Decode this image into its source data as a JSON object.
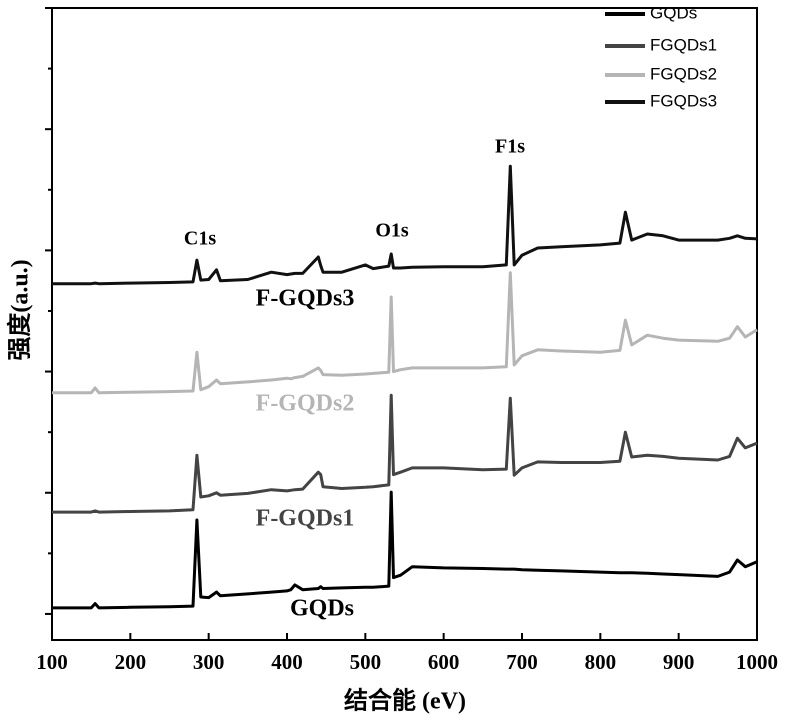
{
  "chart_data": {
    "type": "line",
    "x_label": "结合能 (eV)",
    "y_label": "强度(a.u.)",
    "x": [
      100,
      150,
      155,
      160,
      200,
      250,
      280,
      285,
      290,
      300,
      310,
      315,
      350,
      380,
      400,
      405,
      410,
      420,
      440,
      443,
      446,
      470,
      500,
      510,
      530,
      533,
      536,
      545,
      560,
      600,
      650,
      680,
      685,
      690,
      700,
      720,
      750,
      800,
      825,
      832,
      840,
      860,
      880,
      900,
      950,
      965,
      975,
      985,
      1000
    ],
    "series": [
      {
        "name": "GQDs",
        "color": "#000000",
        "values": [
          0.1,
          0.1,
          0.17,
          0.1,
          0.11,
          0.12,
          0.13,
          1.55,
          0.28,
          0.27,
          0.36,
          0.3,
          0.33,
          0.36,
          0.38,
          0.4,
          0.48,
          0.4,
          0.42,
          0.45,
          0.42,
          0.43,
          0.44,
          0.44,
          0.46,
          2.01,
          0.6,
          0.64,
          0.78,
          0.76,
          0.75,
          0.74,
          0.74,
          0.74,
          0.73,
          0.72,
          0.71,
          0.69,
          0.68,
          0.68,
          0.68,
          0.67,
          0.66,
          0.65,
          0.62,
          0.69,
          0.89,
          0.78,
          0.86
        ]
      },
      {
        "name": "FGQDs1",
        "color": "#444444",
        "values": [
          1.68,
          1.68,
          1.7,
          1.68,
          1.69,
          1.7,
          1.72,
          2.62,
          1.93,
          1.95,
          2.0,
          1.96,
          1.99,
          2.05,
          2.03,
          2.04,
          2.05,
          2.06,
          2.34,
          2.3,
          2.1,
          2.07,
          2.09,
          2.1,
          2.13,
          3.61,
          2.3,
          2.34,
          2.41,
          2.41,
          2.38,
          2.39,
          3.56,
          2.29,
          2.41,
          2.51,
          2.5,
          2.5,
          2.52,
          3.0,
          2.59,
          2.62,
          2.6,
          2.57,
          2.54,
          2.6,
          2.9,
          2.74,
          2.82
        ]
      },
      {
        "name": "FGQDs2",
        "color": "#b5b5b5",
        "values": [
          3.65,
          3.65,
          3.73,
          3.65,
          3.66,
          3.67,
          3.68,
          4.32,
          3.7,
          3.75,
          3.86,
          3.8,
          3.83,
          3.86,
          3.89,
          3.88,
          3.9,
          3.92,
          4.06,
          4.02,
          3.95,
          3.94,
          3.96,
          3.97,
          3.99,
          5.23,
          4.0,
          4.03,
          4.06,
          4.06,
          4.06,
          4.08,
          5.63,
          4.11,
          4.26,
          4.36,
          4.34,
          4.32,
          4.35,
          4.85,
          4.44,
          4.6,
          4.55,
          4.52,
          4.5,
          4.55,
          4.74,
          4.57,
          4.69
        ]
      },
      {
        "name": "FGQDs3",
        "color": "#111111",
        "values": [
          5.45,
          5.45,
          5.46,
          5.45,
          5.46,
          5.47,
          5.48,
          5.84,
          5.51,
          5.52,
          5.68,
          5.5,
          5.52,
          5.64,
          5.6,
          5.61,
          5.62,
          5.62,
          5.89,
          5.75,
          5.64,
          5.64,
          5.76,
          5.7,
          5.74,
          5.94,
          5.71,
          5.71,
          5.72,
          5.73,
          5.73,
          5.76,
          7.39,
          5.76,
          5.92,
          6.04,
          6.06,
          6.09,
          6.12,
          6.63,
          6.17,
          6.27,
          6.24,
          6.17,
          6.17,
          6.2,
          6.24,
          6.2,
          6.19
        ]
      }
    ],
    "annotations": [
      "C1s",
      "O1s",
      "F1s",
      "F-GQDs3",
      "F-GQDs2",
      "F-GQDs1",
      "GQDs"
    ],
    "xlim": [
      100,
      1000
    ],
    "xticks": [
      100,
      200,
      300,
      400,
      500,
      600,
      700,
      800,
      900,
      1000
    ],
    "ylim": [
      -0.43,
      10
    ],
    "yticks": [
      0,
      1,
      2,
      3,
      4,
      5,
      6,
      7,
      8,
      9,
      10
    ],
    "legend": "upper right"
  }
}
